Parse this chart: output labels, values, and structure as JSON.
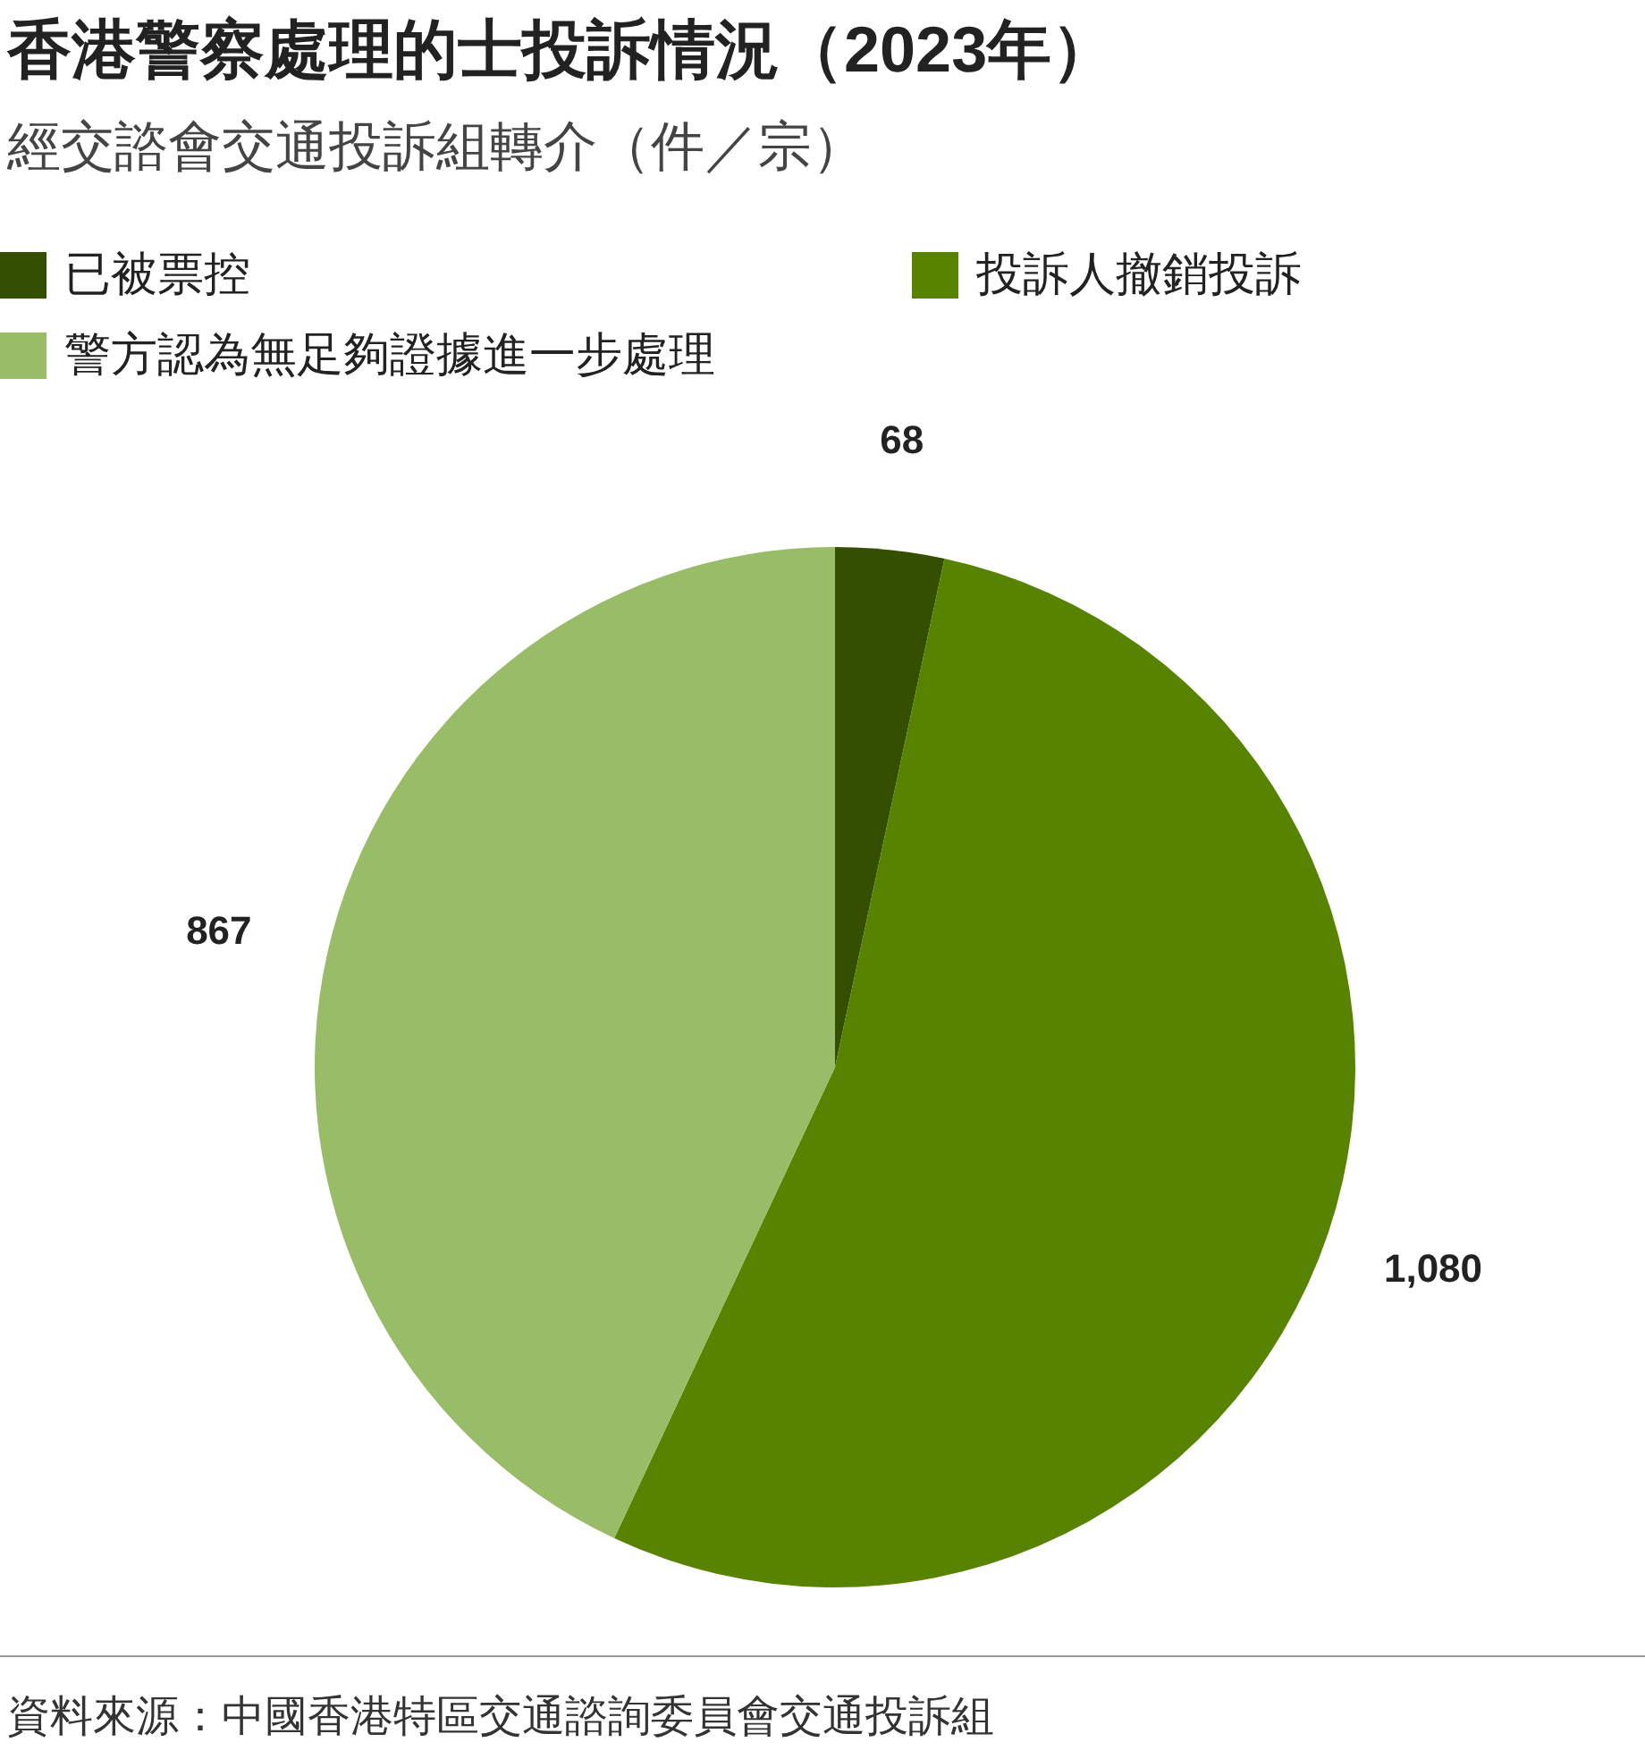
{
  "chart_data": {
    "type": "pie",
    "title": "香港警察處理的士投訴情況（2023年）",
    "subtitle": "經交諮會交通投訴組轉介（件／宗）",
    "categories": [
      "已被票控",
      "投訴人撤銷投訴",
      "警方認為無足夠證據進一步處理"
    ],
    "values": [
      68,
      1080,
      867
    ],
    "colors": [
      "#354f00",
      "#588300",
      "#98bc67"
    ],
    "value_labels": [
      "68",
      "1,080",
      "867"
    ],
    "legend": "top",
    "annotations": [
      "資料來源：中國香港特區交通諮詢委員會交通投訴組"
    ]
  }
}
